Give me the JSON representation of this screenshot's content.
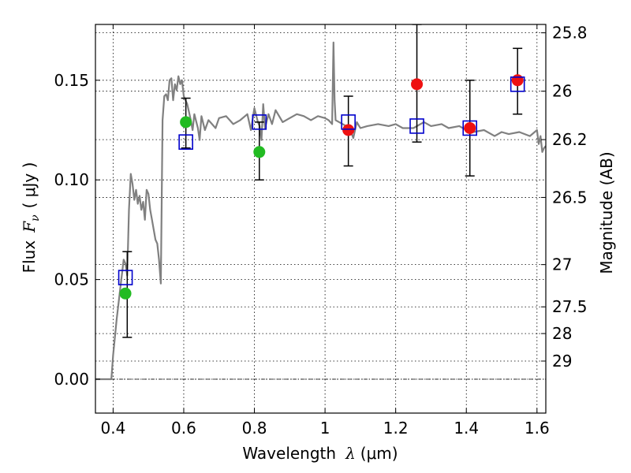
{
  "chart_data": {
    "type": "scatter",
    "xlabel": "Wavelength",
    "xlabel_symbol": "λ",
    "xlabel_unit": "(μm)",
    "ylabel": "Flux",
    "ylabel_symbol": "F",
    "ylabel_symbol_sub": "ν",
    "ylabel_unit": "( μJy )",
    "y2label": "Magnitude (AB)",
    "xlim": [
      0.35,
      1.625
    ],
    "ylim": [
      -0.017,
      0.178
    ],
    "x_ticks": [
      0.4,
      0.6,
      0.8,
      1.0,
      1.2,
      1.4,
      1.6
    ],
    "x_tick_labels": [
      "0.4",
      "0.6",
      "0.8",
      "1",
      "1.2",
      "1.4",
      "1.6"
    ],
    "y_ticks": [
      0.0,
      0.05,
      0.1,
      0.15
    ],
    "y_tick_labels": [
      "0.00",
      "0.05",
      "0.10",
      "0.15"
    ],
    "y2_ticks": [
      {
        "label": "25.8",
        "flux": 0.1738
      },
      {
        "label": "26",
        "flux": 0.1445
      },
      {
        "label": "26.2",
        "flux": 0.1202
      },
      {
        "label": "26.5",
        "flux": 0.0912
      },
      {
        "label": "27",
        "flux": 0.0575
      },
      {
        "label": "27.5",
        "flux": 0.0363
      },
      {
        "label": "28",
        "flux": 0.0229
      },
      {
        "label": "29",
        "flux": 0.0091
      }
    ],
    "grid": true,
    "zero_line": 0.0,
    "colors": {
      "model": "#808080",
      "observed_optical": "#22bb22",
      "observed_nir": "#ee1111",
      "model_photometry": "#0000cc",
      "errorbar": "#000000"
    },
    "model_spectrum": {
      "x": [
        0.35,
        0.395,
        0.4,
        0.41,
        0.42,
        0.43,
        0.435,
        0.44,
        0.445,
        0.45,
        0.455,
        0.46,
        0.465,
        0.47,
        0.475,
        0.48,
        0.485,
        0.49,
        0.495,
        0.5,
        0.505,
        0.51,
        0.515,
        0.52,
        0.525,
        0.53,
        0.535,
        0.54,
        0.545,
        0.55,
        0.555,
        0.56,
        0.565,
        0.57,
        0.575,
        0.58,
        0.585,
        0.59,
        0.595,
        0.6,
        0.61,
        0.62,
        0.625,
        0.63,
        0.64,
        0.645,
        0.65,
        0.66,
        0.67,
        0.68,
        0.69,
        0.7,
        0.72,
        0.74,
        0.76,
        0.78,
        0.79,
        0.8,
        0.81,
        0.815,
        0.82,
        0.825,
        0.83,
        0.84,
        0.85,
        0.86,
        0.87,
        0.88,
        0.9,
        0.92,
        0.94,
        0.96,
        0.98,
        1.0,
        1.01,
        1.02,
        1.022,
        1.024,
        1.027,
        1.03,
        1.05,
        1.07,
        1.08,
        1.09,
        1.1,
        1.12,
        1.15,
        1.18,
        1.2,
        1.22,
        1.25,
        1.28,
        1.3,
        1.33,
        1.35,
        1.38,
        1.4,
        1.42,
        1.45,
        1.48,
        1.5,
        1.52,
        1.55,
        1.58,
        1.6,
        1.605,
        1.61,
        1.615,
        1.62,
        1.625
      ],
      "y": [
        0.0,
        0.0,
        0.012,
        0.03,
        0.045,
        0.06,
        0.058,
        0.052,
        0.085,
        0.103,
        0.098,
        0.09,
        0.095,
        0.088,
        0.092,
        0.085,
        0.089,
        0.08,
        0.095,
        0.093,
        0.085,
        0.08,
        0.075,
        0.07,
        0.068,
        0.06,
        0.048,
        0.13,
        0.142,
        0.143,
        0.14,
        0.15,
        0.151,
        0.14,
        0.148,
        0.145,
        0.152,
        0.148,
        0.15,
        0.142,
        0.138,
        0.13,
        0.125,
        0.133,
        0.126,
        0.12,
        0.132,
        0.125,
        0.13,
        0.128,
        0.126,
        0.131,
        0.132,
        0.128,
        0.13,
        0.133,
        0.125,
        0.136,
        0.129,
        0.127,
        0.12,
        0.138,
        0.126,
        0.133,
        0.128,
        0.135,
        0.132,
        0.129,
        0.131,
        0.133,
        0.132,
        0.13,
        0.132,
        0.131,
        0.13,
        0.128,
        0.15,
        0.169,
        0.14,
        0.13,
        0.128,
        0.126,
        0.121,
        0.129,
        0.126,
        0.127,
        0.128,
        0.127,
        0.128,
        0.126,
        0.126,
        0.129,
        0.127,
        0.128,
        0.126,
        0.127,
        0.125,
        0.124,
        0.125,
        0.122,
        0.124,
        0.123,
        0.124,
        0.122,
        0.125,
        0.118,
        0.122,
        0.114,
        0.116,
        0.117
      ]
    },
    "series": [
      {
        "marker": "circle",
        "color": "#22bb22",
        "points": [
          {
            "x": 0.435,
            "y": 0.043
          },
          {
            "x": 0.606,
            "y": 0.129
          },
          {
            "x": 0.814,
            "y": 0.114
          }
        ]
      },
      {
        "marker": "circle",
        "color": "#ee1111",
        "points": [
          {
            "x": 1.066,
            "y": 0.125
          },
          {
            "x": 1.26,
            "y": 0.148
          },
          {
            "x": 1.41,
            "y": 0.126
          },
          {
            "x": 1.545,
            "y": 0.15
          }
        ]
      },
      {
        "marker": "square",
        "color": "#0000cc",
        "points": [
          {
            "x": 0.435,
            "y": 0.051
          },
          {
            "x": 0.606,
            "y": 0.119
          },
          {
            "x": 0.814,
            "y": 0.129
          },
          {
            "x": 1.066,
            "y": 0.129
          },
          {
            "x": 1.26,
            "y": 0.127
          },
          {
            "x": 1.41,
            "y": 0.126
          },
          {
            "x": 1.545,
            "y": 0.148
          }
        ]
      }
    ],
    "errorbars": [
      {
        "x": 0.44,
        "ylow": 0.021,
        "yhigh": 0.064
      },
      {
        "x": 0.606,
        "ylow": 0.116,
        "yhigh": 0.141
      },
      {
        "x": 0.814,
        "ylow": 0.1,
        "yhigh": 0.129
      },
      {
        "x": 1.066,
        "ylow": 0.107,
        "yhigh": 0.142
      },
      {
        "x": 1.26,
        "ylow": 0.119,
        "yhigh": 0.178
      },
      {
        "x": 1.41,
        "ylow": 0.102,
        "yhigh": 0.15
      },
      {
        "x": 1.545,
        "ylow": 0.133,
        "yhigh": 0.166
      }
    ]
  }
}
